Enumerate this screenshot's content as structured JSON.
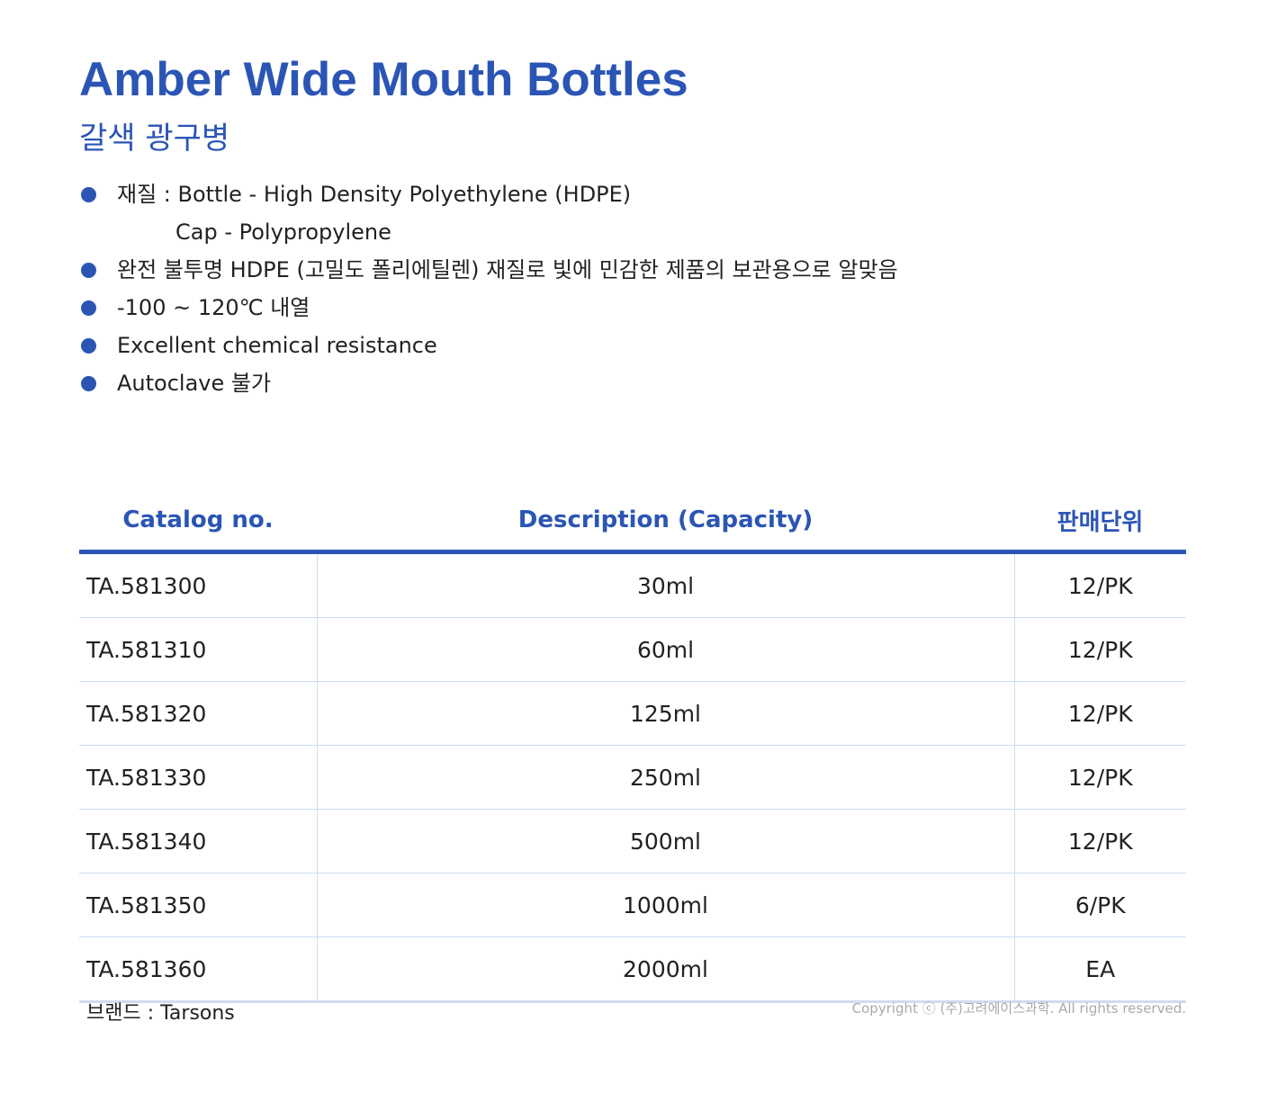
{
  "header": {
    "title": "Amber Wide Mouth Bottles",
    "subtitle": "갈색 광구병"
  },
  "bullets": [
    [
      "재질 : Bottle - High Density Polyethylene (HDPE)",
      "Cap - Polypropylene"
    ],
    [
      "완전 불투명 HDPE (고밀도 폴리에틸렌) 재질로 빛에 민감한 제품의 보관용으로 알맞음"
    ],
    [
      "-100 ~ 120℃ 내열"
    ],
    [
      "Excellent chemical resistance"
    ],
    [
      "Autoclave 불가"
    ]
  ],
  "table": {
    "columns": [
      "Catalog no.",
      "Description (Capacity)",
      "판매단위"
    ],
    "rows": [
      [
        "TA.581300",
        "30ml",
        "12/PK"
      ],
      [
        "TA.581310",
        "60ml",
        "12/PK"
      ],
      [
        "TA.581320",
        "125ml",
        "12/PK"
      ],
      [
        "TA.581330",
        "250ml",
        "12/PK"
      ],
      [
        "TA.581340",
        "500ml",
        "12/PK"
      ],
      [
        "TA.581350",
        "1000ml",
        "6/PK"
      ],
      [
        "TA.581360",
        "2000ml",
        "EA"
      ]
    ]
  },
  "footer": {
    "brand": "브랜드 : Tarsons",
    "copyright": "Copyright ⓒ (주)고려에이스과학. All rights reserved."
  }
}
